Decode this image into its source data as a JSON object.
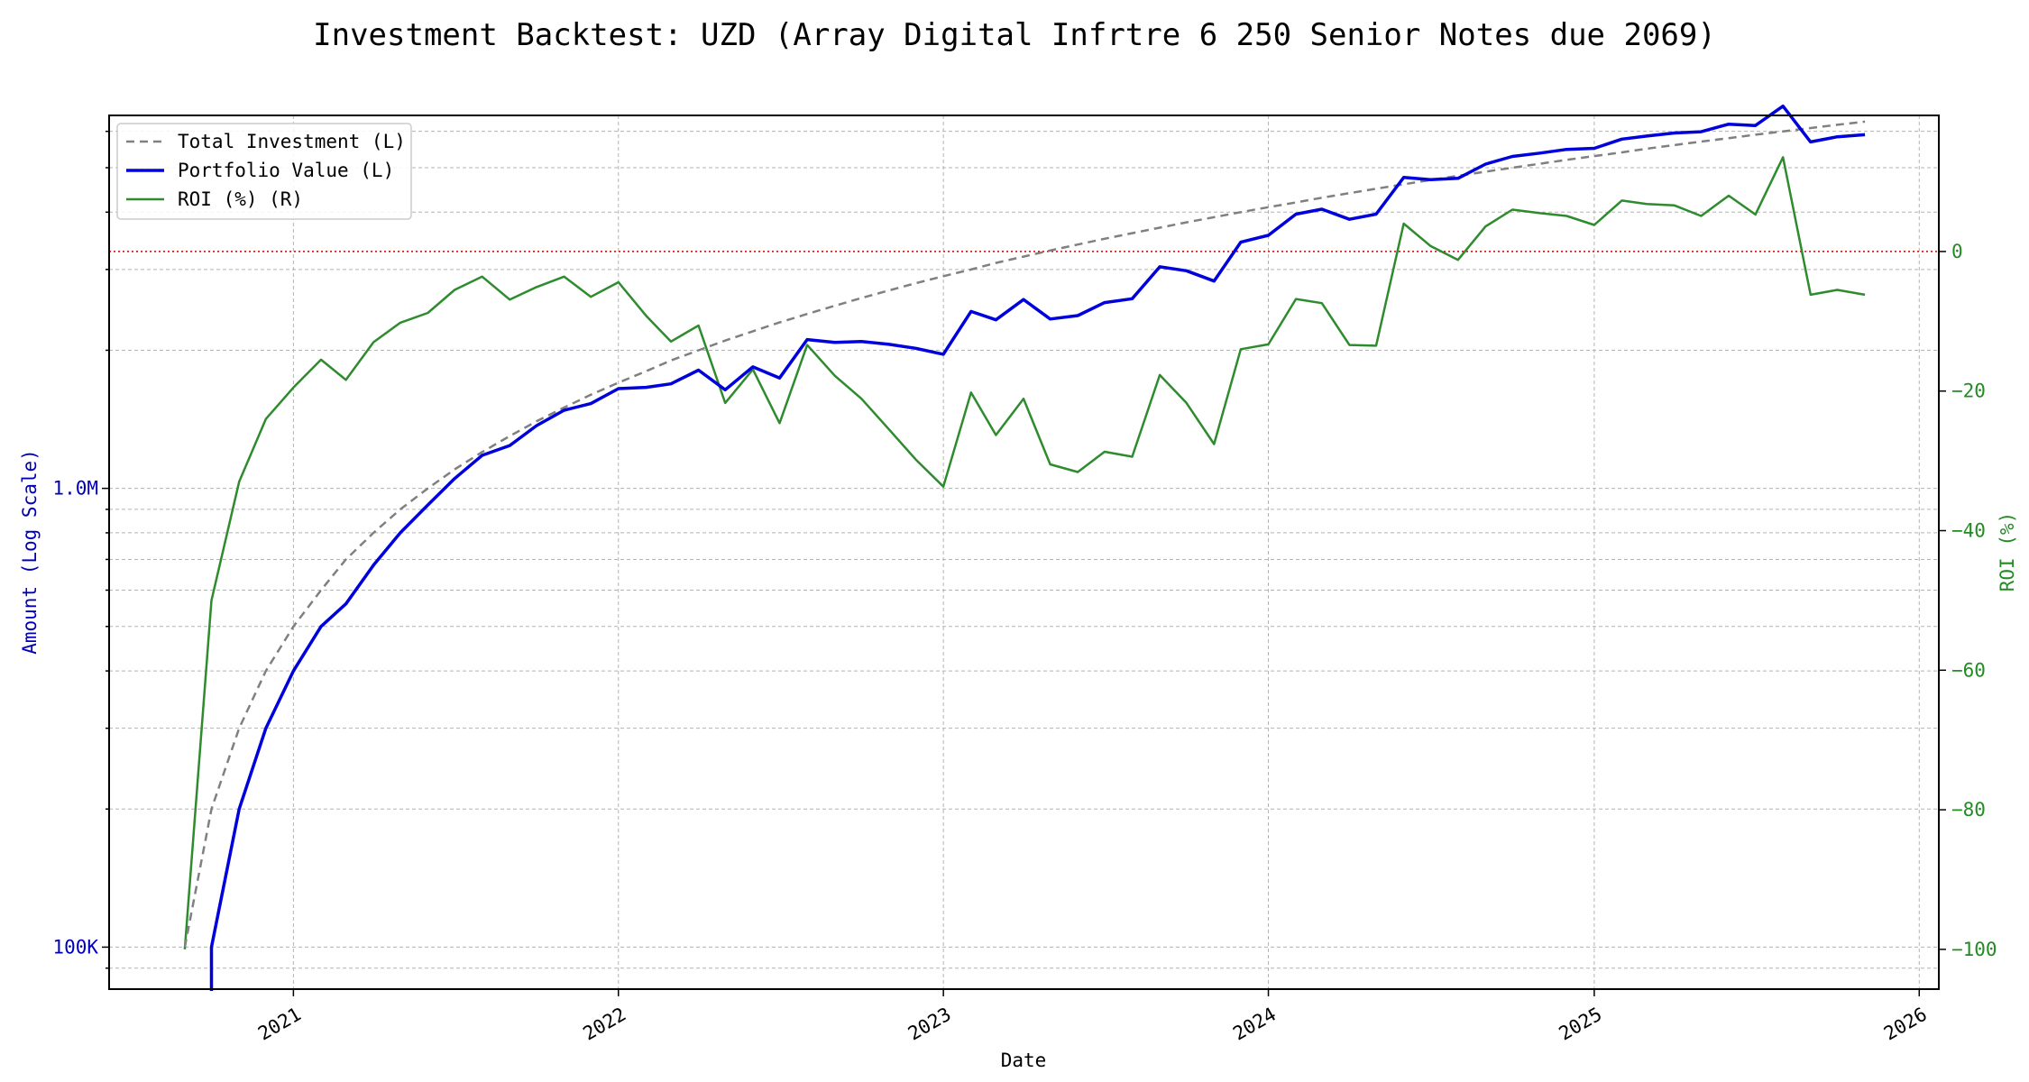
{
  "chart_data": {
    "type": "line",
    "title": "Investment Backtest: UZD (Array Digital Infrtre 6 250 Senior Notes due 2069)",
    "xlabel": "Date",
    "ylabel_left": "Amount (Log Scale)",
    "ylabel_right": "ROI (%)",
    "left_axis_scale": "log",
    "left_ylim": [
      81000,
      6500000
    ],
    "right_ylim": [
      -105.7,
      19.5
    ],
    "xlim": [
      "2020-06-08",
      "2026-01-23"
    ],
    "x_ticks": [
      "2021",
      "2022",
      "2023",
      "2024",
      "2025",
      "2026"
    ],
    "left_ticks": [
      {
        "value": 100000,
        "label": "100K"
      },
      {
        "value": 1000000,
        "label": "1.0M"
      }
    ],
    "right_ticks": [
      {
        "value": 0,
        "label": "0"
      },
      {
        "value": -20,
        "label": "−20"
      },
      {
        "value": -40,
        "label": "−40"
      },
      {
        "value": -60,
        "label": "−60"
      },
      {
        "value": -80,
        "label": "−80"
      },
      {
        "value": -100,
        "label": "−100"
      }
    ],
    "grid": true,
    "legend_position": "top-left",
    "reference_line": {
      "axis": "right",
      "value": 0,
      "color": "#cc0000",
      "style": "dotted"
    },
    "colors": {
      "left_axis": "#0000bb",
      "right_axis": "#228b22",
      "total_investment": "#808080",
      "portfolio_value": "#0000dd",
      "roi": "#2e8b2e"
    },
    "series": [
      {
        "name": "Total Investment (L)",
        "axis": "left",
        "style": "dashed",
        "points": [
          [
            "2020-09-01",
            100000
          ],
          [
            "2020-10-01",
            200000
          ],
          [
            "2020-11-01",
            300000
          ],
          [
            "2020-12-01",
            400000
          ],
          [
            "2021-01-01",
            500000
          ],
          [
            "2021-02-01",
            600000
          ],
          [
            "2021-03-01",
            700000
          ],
          [
            "2021-04-01",
            800000
          ],
          [
            "2021-05-01",
            900000
          ],
          [
            "2021-06-01",
            1000000
          ],
          [
            "2021-07-01",
            1100000
          ],
          [
            "2021-08-01",
            1200000
          ],
          [
            "2021-09-01",
            1300000
          ],
          [
            "2021-10-01",
            1400000
          ],
          [
            "2021-11-01",
            1500000
          ],
          [
            "2021-12-01",
            1600000
          ],
          [
            "2022-01-01",
            1700000
          ],
          [
            "2022-02-01",
            1800000
          ],
          [
            "2022-03-01",
            1900000
          ],
          [
            "2022-04-01",
            2000000
          ],
          [
            "2022-05-01",
            2100000
          ],
          [
            "2022-06-01",
            2200000
          ],
          [
            "2022-07-01",
            2300000
          ],
          [
            "2022-08-01",
            2400000
          ],
          [
            "2022-09-01",
            2500000
          ],
          [
            "2022-10-01",
            2600000
          ],
          [
            "2022-11-01",
            2700000
          ],
          [
            "2022-12-01",
            2800000
          ],
          [
            "2023-01-01",
            2900000
          ],
          [
            "2023-02-01",
            3000000
          ],
          [
            "2023-03-01",
            3100000
          ],
          [
            "2023-04-01",
            3200000
          ],
          [
            "2023-05-01",
            3300000
          ],
          [
            "2023-06-01",
            3400000
          ],
          [
            "2023-07-01",
            3500000
          ],
          [
            "2023-08-01",
            3600000
          ],
          [
            "2023-09-01",
            3700000
          ],
          [
            "2023-10-01",
            3800000
          ],
          [
            "2023-11-01",
            3900000
          ],
          [
            "2023-12-01",
            4000000
          ],
          [
            "2024-01-01",
            4100000
          ],
          [
            "2024-02-01",
            4200000
          ],
          [
            "2024-03-01",
            4300000
          ],
          [
            "2024-04-01",
            4400000
          ],
          [
            "2024-05-01",
            4500000
          ],
          [
            "2024-06-01",
            4600000
          ],
          [
            "2024-07-01",
            4700000
          ],
          [
            "2024-08-01",
            4800000
          ],
          [
            "2024-09-01",
            4900000
          ],
          [
            "2024-10-01",
            5000000
          ],
          [
            "2024-11-01",
            5100000
          ],
          [
            "2024-12-01",
            5200000
          ],
          [
            "2025-01-01",
            5300000
          ],
          [
            "2025-02-01",
            5400000
          ],
          [
            "2025-03-01",
            5500000
          ],
          [
            "2025-04-01",
            5600000
          ],
          [
            "2025-05-01",
            5700000
          ],
          [
            "2025-06-01",
            5800000
          ],
          [
            "2025-07-01",
            5900000
          ],
          [
            "2025-08-01",
            6000000
          ],
          [
            "2025-09-01",
            6100000
          ],
          [
            "2025-10-01",
            6200000
          ],
          [
            "2025-11-01",
            6300000
          ]
        ]
      },
      {
        "name": "Portfolio Value (L)",
        "axis": "left",
        "style": "solid",
        "points": [
          [
            "2020-10-01",
            100000
          ],
          [
            "2020-11-01",
            200000
          ],
          [
            "2020-12-01",
            300000
          ],
          [
            "2021-01-01",
            400000
          ],
          [
            "2021-02-01",
            500000
          ],
          [
            "2021-03-01",
            560000
          ],
          [
            "2021-04-01",
            680000
          ],
          [
            "2021-05-01",
            800000
          ],
          [
            "2021-06-01",
            920000
          ],
          [
            "2021-07-01",
            1050000
          ],
          [
            "2021-08-01",
            1180000
          ],
          [
            "2021-09-01",
            1240000
          ],
          [
            "2021-10-01",
            1370000
          ],
          [
            "2021-11-01",
            1480000
          ],
          [
            "2021-12-01",
            1530000
          ],
          [
            "2022-01-01",
            1650000
          ],
          [
            "2022-02-01",
            1660000
          ],
          [
            "2022-03-01",
            1690000
          ],
          [
            "2022-04-01",
            1810000
          ],
          [
            "2022-05-01",
            1640000
          ],
          [
            "2022-06-01",
            1840000
          ],
          [
            "2022-07-01",
            1740000
          ],
          [
            "2022-08-01",
            2110000
          ],
          [
            "2022-09-01",
            2080000
          ],
          [
            "2022-10-01",
            2090000
          ],
          [
            "2022-11-01",
            2060000
          ],
          [
            "2022-12-01",
            2020000
          ],
          [
            "2023-01-01",
            1960000
          ],
          [
            "2023-02-01",
            2430000
          ],
          [
            "2023-03-01",
            2330000
          ],
          [
            "2023-04-01",
            2580000
          ],
          [
            "2023-05-01",
            2340000
          ],
          [
            "2023-06-01",
            2380000
          ],
          [
            "2023-07-01",
            2540000
          ],
          [
            "2023-08-01",
            2590000
          ],
          [
            "2023-09-01",
            3040000
          ],
          [
            "2023-10-01",
            2980000
          ],
          [
            "2023-11-01",
            2830000
          ],
          [
            "2023-12-01",
            3440000
          ],
          [
            "2024-01-01",
            3560000
          ],
          [
            "2024-02-01",
            3960000
          ],
          [
            "2024-03-01",
            4060000
          ],
          [
            "2024-04-01",
            3860000
          ],
          [
            "2024-05-01",
            3960000
          ],
          [
            "2024-06-01",
            4760000
          ],
          [
            "2024-07-01",
            4710000
          ],
          [
            "2024-08-01",
            4740000
          ],
          [
            "2024-09-01",
            5090000
          ],
          [
            "2024-10-01",
            5290000
          ],
          [
            "2024-11-01",
            5380000
          ],
          [
            "2024-12-01",
            5480000
          ],
          [
            "2025-01-01",
            5510000
          ],
          [
            "2025-02-01",
            5770000
          ],
          [
            "2025-03-01",
            5860000
          ],
          [
            "2025-04-01",
            5950000
          ],
          [
            "2025-05-01",
            5990000
          ],
          [
            "2025-06-01",
            6220000
          ],
          [
            "2025-07-01",
            6180000
          ],
          [
            "2025-08-01",
            6810000
          ],
          [
            "2025-09-01",
            5690000
          ],
          [
            "2025-10-01",
            5840000
          ],
          [
            "2025-11-01",
            5900000
          ]
        ]
      },
      {
        "name": "ROI (%) (R)",
        "axis": "right",
        "style": "solid",
        "points": [
          [
            "2020-09-01",
            -100
          ],
          [
            "2020-10-01",
            -50
          ],
          [
            "2020-11-01",
            -33
          ],
          [
            "2020-12-01",
            -24
          ],
          [
            "2021-01-01",
            -19.5
          ],
          [
            "2021-02-01",
            -15.5
          ],
          [
            "2021-03-01",
            -18.4
          ],
          [
            "2021-04-01",
            -13
          ],
          [
            "2021-05-01",
            -10.2
          ],
          [
            "2021-06-01",
            -8.8
          ],
          [
            "2021-07-01",
            -5.5
          ],
          [
            "2021-08-01",
            -3.6
          ],
          [
            "2021-09-01",
            -6.9
          ],
          [
            "2021-10-01",
            -5.1
          ],
          [
            "2021-11-01",
            -3.6
          ],
          [
            "2021-12-01",
            -6.5
          ],
          [
            "2022-01-01",
            -4.4
          ],
          [
            "2022-02-01",
            -9.2
          ],
          [
            "2022-03-01",
            -12.9
          ],
          [
            "2022-04-01",
            -10.6
          ],
          [
            "2022-05-01",
            -21.7
          ],
          [
            "2022-06-01",
            -16.9
          ],
          [
            "2022-07-01",
            -24.6
          ],
          [
            "2022-08-01",
            -13.4
          ],
          [
            "2022-09-01",
            -17.8
          ],
          [
            "2022-10-01",
            -21.1
          ],
          [
            "2022-11-01",
            -25.5
          ],
          [
            "2022-12-01",
            -29.8
          ],
          [
            "2023-01-01",
            -33.7
          ],
          [
            "2023-02-01",
            -20.2
          ],
          [
            "2023-03-01",
            -26.3
          ],
          [
            "2023-04-01",
            -21.1
          ],
          [
            "2023-05-01",
            -30.5
          ],
          [
            "2023-06-01",
            -31.6
          ],
          [
            "2023-07-01",
            -28.7
          ],
          [
            "2023-08-01",
            -29.4
          ],
          [
            "2023-09-01",
            -17.7
          ],
          [
            "2023-10-01",
            -21.7
          ],
          [
            "2023-11-01",
            -27.6
          ],
          [
            "2023-12-01",
            -14
          ],
          [
            "2024-01-01",
            -13.3
          ],
          [
            "2024-02-01",
            -6.8
          ],
          [
            "2024-03-01",
            -7.4
          ],
          [
            "2024-04-01",
            -13.4
          ],
          [
            "2024-05-01",
            -13.5
          ],
          [
            "2024-06-01",
            4
          ],
          [
            "2024-07-01",
            0.8
          ],
          [
            "2024-08-01",
            -1.2
          ],
          [
            "2024-09-01",
            3.6
          ],
          [
            "2024-10-01",
            6
          ],
          [
            "2024-11-01",
            5.5
          ],
          [
            "2024-12-01",
            5.1
          ],
          [
            "2025-01-01",
            3.8
          ],
          [
            "2025-02-01",
            7.3
          ],
          [
            "2025-03-01",
            6.8
          ],
          [
            "2025-04-01",
            6.6
          ],
          [
            "2025-05-01",
            5.1
          ],
          [
            "2025-06-01",
            8
          ],
          [
            "2025-07-01",
            5.3
          ],
          [
            "2025-08-01",
            13.5
          ],
          [
            "2025-09-01",
            -6.2
          ],
          [
            "2025-10-01",
            -5.5
          ],
          [
            "2025-11-01",
            -6.2
          ]
        ]
      }
    ]
  }
}
